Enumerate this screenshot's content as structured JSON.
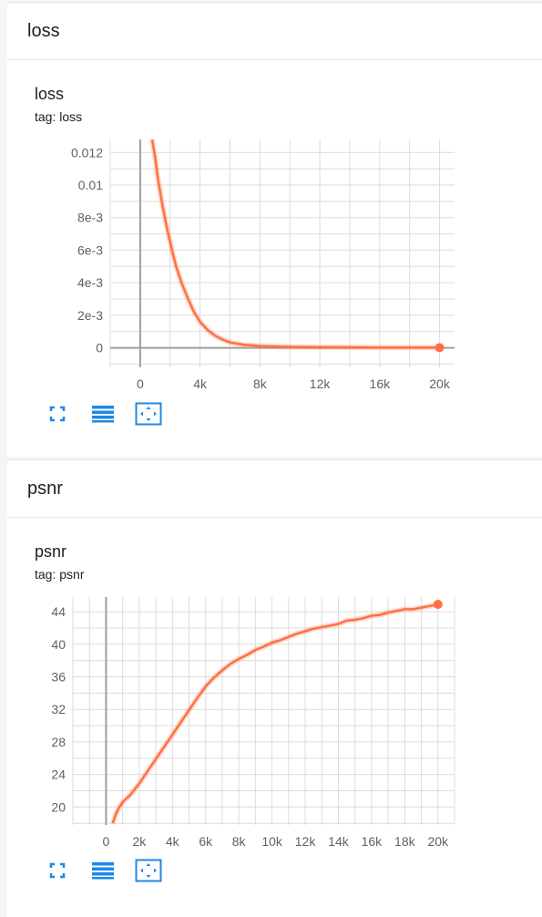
{
  "colors": {
    "accent": "#ff7043",
    "grid": "#dcdcdc",
    "axis": "#9e9e9e",
    "button": "#1e88e5"
  },
  "cards": [
    {
      "header": "loss",
      "title": "loss",
      "tag": "tag: loss",
      "tools": [
        "fullscreen-icon",
        "list-icon",
        "fit-domain-icon"
      ]
    },
    {
      "header": "psnr",
      "title": "psnr",
      "tag": "tag: psnr",
      "tools": [
        "fullscreen-icon",
        "list-icon",
        "fit-domain-icon"
      ]
    }
  ],
  "chart_data": [
    {
      "type": "line",
      "title": "loss",
      "xlim": [
        -2000,
        21000
      ],
      "ylim": [
        -0.0012,
        0.0128
      ],
      "xticks": [
        0,
        4000,
        8000,
        12000,
        16000,
        20000
      ],
      "xtick_labels": [
        "0",
        "4k",
        "8k",
        "12k",
        "16k",
        "20k"
      ],
      "yticks": [
        0,
        0.002,
        0.004,
        0.006,
        0.008,
        0.01,
        0.012
      ],
      "ytick_labels": [
        "0",
        "2e-3",
        "4e-3",
        "6e-3",
        "8e-3",
        "0.01",
        "0.012"
      ],
      "grid": true,
      "series": [
        {
          "x": [
            800,
            1000,
            1200,
            1500,
            1800,
            2100,
            2400,
            2800,
            3200,
            3600,
            4000,
            4500,
            5000,
            5500,
            6000,
            7000,
            8000,
            9000,
            10000,
            12000,
            14000,
            16000,
            18000,
            20000
          ],
          "y": [
            0.0128,
            0.0117,
            0.0103,
            0.0087,
            0.0073,
            0.0061,
            0.005,
            0.0039,
            0.003,
            0.0022,
            0.0016,
            0.0011,
            0.00075,
            0.0005,
            0.00033,
            0.00018,
            0.00011,
            8e-05,
            6e-05,
            4e-05,
            3e-05,
            2e-05,
            2e-05,
            1e-05
          ]
        }
      ]
    },
    {
      "type": "line",
      "title": "psnr",
      "xlim": [
        -2000,
        21000
      ],
      "ylim": [
        17.8,
        45.8
      ],
      "xticks": [
        0,
        2000,
        4000,
        6000,
        8000,
        10000,
        12000,
        14000,
        16000,
        18000,
        20000
      ],
      "xtick_labels": [
        "0",
        "2k",
        "4k",
        "6k",
        "8k",
        "10k",
        "12k",
        "14k",
        "16k",
        "18k",
        "20k"
      ],
      "yticks": [
        20,
        24,
        28,
        32,
        36,
        40,
        44
      ],
      "ytick_labels": [
        "20",
        "24",
        "28",
        "32",
        "36",
        "40",
        "44"
      ],
      "grid": true,
      "series": [
        {
          "x": [
            400,
            600,
            800,
            1000,
            1500,
            2000,
            2500,
            3000,
            3500,
            4000,
            4500,
            5000,
            5500,
            6000,
            6500,
            7000,
            7500,
            8000,
            8500,
            9000,
            9500,
            10000,
            10500,
            11000,
            11500,
            12000,
            12500,
            13000,
            13500,
            14000,
            14500,
            15000,
            15500,
            16000,
            16500,
            17000,
            17500,
            18000,
            18500,
            19000,
            19500,
            20000
          ],
          "y": [
            18.0,
            19.2,
            20.0,
            20.6,
            21.6,
            22.9,
            24.4,
            25.9,
            27.4,
            28.9,
            30.4,
            31.9,
            33.4,
            34.8,
            35.9,
            36.8,
            37.6,
            38.2,
            38.7,
            39.3,
            39.7,
            40.2,
            40.5,
            40.9,
            41.3,
            41.6,
            41.9,
            42.1,
            42.3,
            42.5,
            42.9,
            43.0,
            43.2,
            43.5,
            43.6,
            43.9,
            44.1,
            44.3,
            44.3,
            44.5,
            44.7,
            44.9
          ]
        }
      ]
    }
  ]
}
